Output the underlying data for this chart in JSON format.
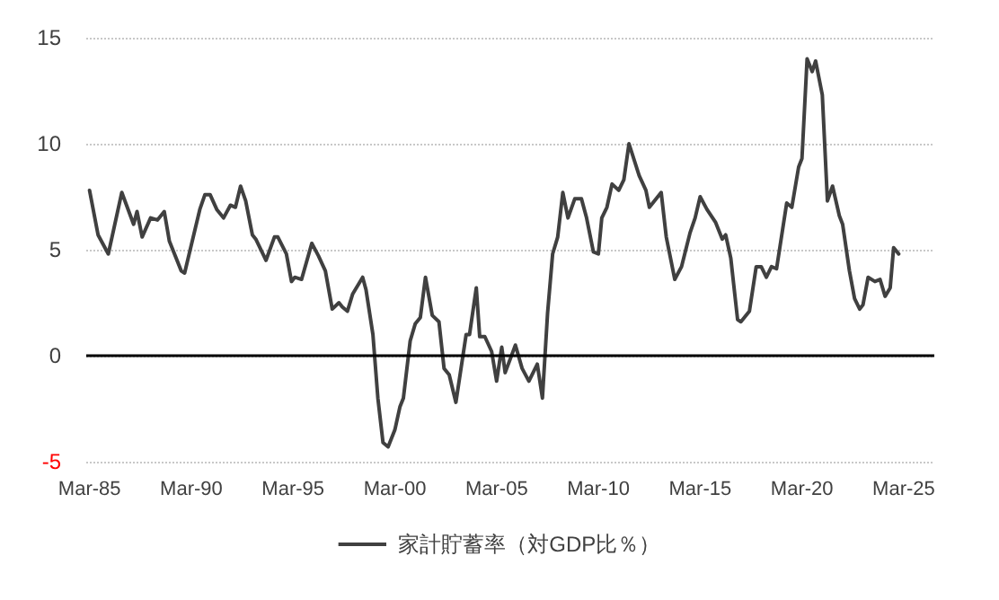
{
  "chart_data": {
    "type": "line",
    "marker": "none",
    "grid": "y",
    "legend": "bottom",
    "ylim": [
      -5,
      15
    ],
    "yticks": [
      -5,
      0,
      5,
      10,
      15
    ],
    "xlim": [
      "1985-01",
      "2026-09"
    ],
    "xticks": [
      {
        "value": "1985-03",
        "label": "Mar-85"
      },
      {
        "value": "1990-03",
        "label": "Mar-90"
      },
      {
        "value": "1995-03",
        "label": "Mar-95"
      },
      {
        "value": "2000-03",
        "label": "Mar-00"
      },
      {
        "value": "2005-03",
        "label": "Mar-05"
      },
      {
        "value": "2010-03",
        "label": "Mar-10"
      },
      {
        "value": "2015-03",
        "label": "Mar-15"
      },
      {
        "value": "2020-03",
        "label": "Mar-20"
      },
      {
        "value": "2025-03",
        "label": "Mar-25"
      }
    ],
    "ref_lines": [
      {
        "axis": "y",
        "value": 0,
        "color": "#000000"
      }
    ],
    "x": [
      "1985-03",
      "1985-08",
      "1986-02",
      "1986-10",
      "1987-05",
      "1987-07",
      "1987-10",
      "1988-03",
      "1988-07",
      "1988-11",
      "1989-02",
      "1989-09",
      "1989-11",
      "1990-08",
      "1990-11",
      "1991-02",
      "1991-06",
      "1991-10",
      "1992-02",
      "1992-05",
      "1992-08",
      "1992-11",
      "1993-03",
      "1993-05",
      "1993-11",
      "1994-04",
      "1994-06",
      "1994-11",
      "1995-02",
      "1995-04",
      "1995-08",
      "1996-02",
      "1996-06",
      "1996-10",
      "1997-02",
      "1997-06",
      "1997-08",
      "1997-11",
      "1998-02",
      "1998-08",
      "1998-10",
      "1999-02",
      "1999-05",
      "1999-08",
      "1999-11",
      "2000-03",
      "2000-06",
      "2000-08",
      "2000-12",
      "2001-03",
      "2001-06",
      "2001-09",
      "2002-01",
      "2002-05",
      "2002-08",
      "2002-11",
      "2003-03",
      "2003-09",
      "2003-11",
      "2004-03",
      "2004-05",
      "2004-08",
      "2004-12",
      "2005-03",
      "2005-06",
      "2005-08",
      "2006-02",
      "2006-06",
      "2006-10",
      "2007-03",
      "2007-06",
      "2007-09",
      "2007-12",
      "2008-03",
      "2008-06",
      "2008-09",
      "2009-01",
      "2009-05",
      "2009-08",
      "2009-12",
      "2010-03",
      "2010-05",
      "2010-08",
      "2010-11",
      "2011-03",
      "2011-06",
      "2011-09",
      "2012-03",
      "2012-07",
      "2012-09",
      "2013-04",
      "2013-07",
      "2013-12",
      "2014-04",
      "2014-09",
      "2014-12",
      "2015-03",
      "2015-07",
      "2015-12",
      "2016-04",
      "2016-06",
      "2016-09",
      "2017-01",
      "2017-03",
      "2017-08",
      "2017-12",
      "2018-03",
      "2018-06",
      "2018-09",
      "2018-12",
      "2019-06",
      "2019-09",
      "2020-01",
      "2020-03",
      "2020-06",
      "2020-09",
      "2020-11",
      "2021-03",
      "2021-06",
      "2021-09",
      "2022-01",
      "2022-03",
      "2022-07",
      "2022-10",
      "2023-01",
      "2023-03",
      "2023-06",
      "2023-10",
      "2024-01",
      "2024-04",
      "2024-07",
      "2024-09",
      "2024-12"
    ],
    "series": [
      {
        "name": "家計貯蓄率（対GDP比％）",
        "color": "#404040",
        "values": [
          7.8,
          5.7,
          4.8,
          7.7,
          6.2,
          6.8,
          5.6,
          6.5,
          6.4,
          6.8,
          5.4,
          4.0,
          3.9,
          6.9,
          7.6,
          7.6,
          6.9,
          6.5,
          7.1,
          7.0,
          8.0,
          7.3,
          5.7,
          5.5,
          4.5,
          5.6,
          5.6,
          4.8,
          3.5,
          3.7,
          3.6,
          5.3,
          4.7,
          4.0,
          2.2,
          2.5,
          2.3,
          2.1,
          2.9,
          3.7,
          3.1,
          1.0,
          -2.0,
          -4.1,
          -4.3,
          -3.5,
          -2.4,
          -2.0,
          0.7,
          1.5,
          1.8,
          3.7,
          1.9,
          1.6,
          -0.6,
          -0.9,
          -2.2,
          1.0,
          1.0,
          3.2,
          0.9,
          0.9,
          0.2,
          -1.2,
          0.4,
          -0.8,
          0.5,
          -0.6,
          -1.2,
          -0.4,
          -2.0,
          2.0,
          4.8,
          5.6,
          7.7,
          6.5,
          7.4,
          7.4,
          6.5,
          4.9,
          4.8,
          6.5,
          7.0,
          8.1,
          7.8,
          8.3,
          10.0,
          8.5,
          7.8,
          7.0,
          7.7,
          5.6,
          3.6,
          4.2,
          5.8,
          6.5,
          7.5,
          6.9,
          6.3,
          5.5,
          5.7,
          4.6,
          1.7,
          1.6,
          2.1,
          4.2,
          4.2,
          3.7,
          4.2,
          4.1,
          7.2,
          7.0,
          8.9,
          9.3,
          14.0,
          13.4,
          13.9,
          12.3,
          7.3,
          8.0,
          6.6,
          6.2,
          4.0,
          2.7,
          2.2,
          2.4,
          3.7,
          3.5,
          3.6,
          2.8,
          3.2,
          5.1,
          4.8
        ]
      }
    ]
  }
}
